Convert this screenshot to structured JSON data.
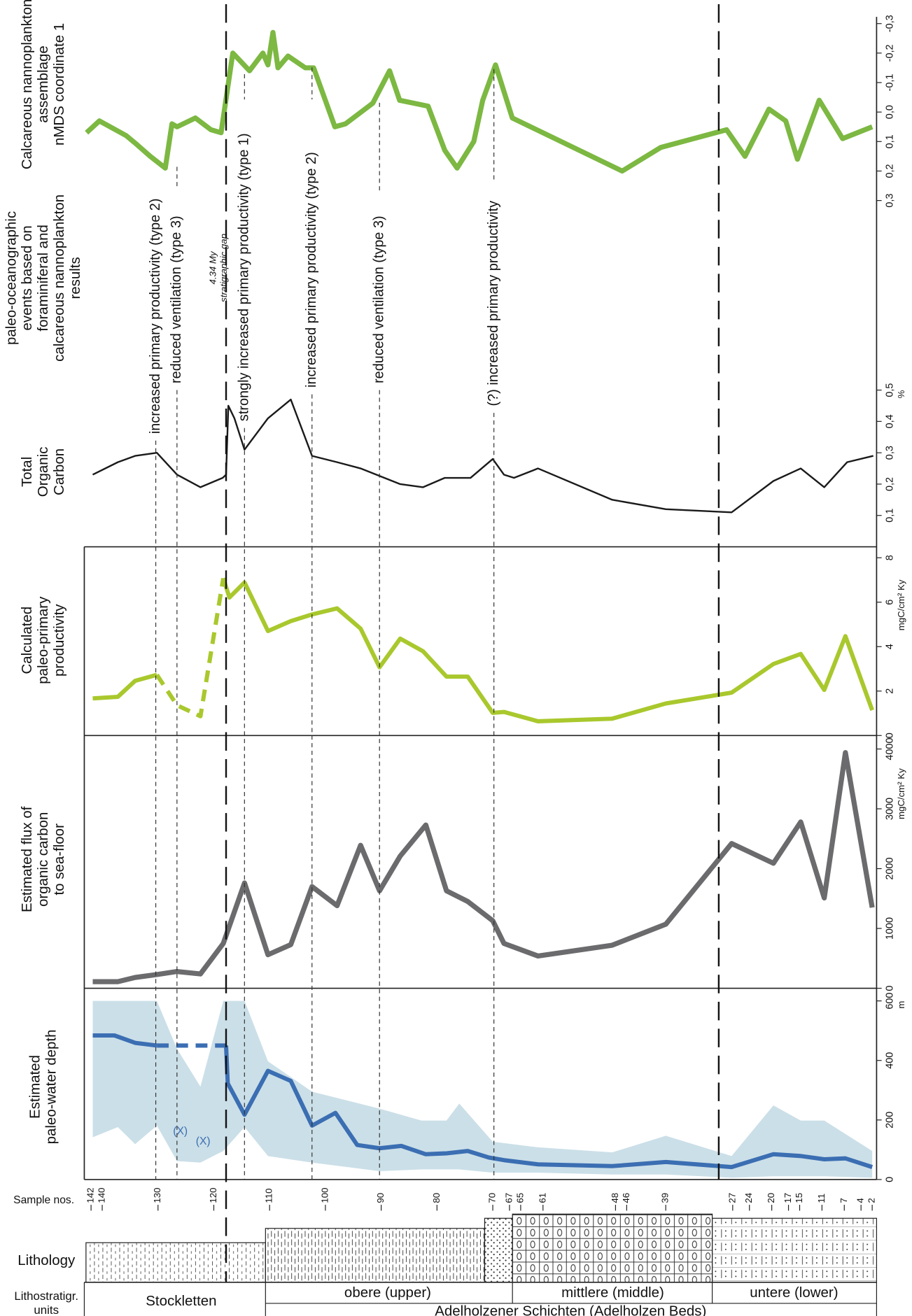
{
  "chart_data": [
    {
      "type": "line",
      "title": [
        "Calcareous nannoplankton",
        "assemblage",
        "nMDS coordinate 1"
      ],
      "x": [
        142.8,
        140.5,
        135.7,
        133.8,
        131.4,
        128.7,
        127.5,
        126.6,
        123.3,
        120.5,
        118.7,
        116.6,
        113.6,
        111.2,
        110.3,
        109.4,
        108.5,
        106.7,
        103.6,
        102.1,
        98.3,
        96.4,
        91.5,
        88.5,
        86.7,
        81.6,
        78.6,
        76.4,
        73.4,
        71.8,
        69.5,
        66.5,
        46.8,
        39.9,
        28.1,
        24.8,
        20.5,
        17.5,
        15.4,
        11.5,
        7.3,
        2.0
      ],
      "values": [
        0.07,
        0.03,
        0.08,
        0.11,
        0.15,
        0.19,
        0.04,
        0.05,
        0.02,
        0.06,
        0.07,
        -0.2,
        -0.14,
        -0.2,
        -0.16,
        -0.27,
        -0.15,
        -0.19,
        -0.15,
        -0.15,
        0.05,
        0.04,
        -0.03,
        -0.14,
        -0.04,
        -0.02,
        0.13,
        0.19,
        0.1,
        -0.04,
        -0.16,
        0.02,
        0.2,
        0.12,
        0.06,
        0.15,
        -0.01,
        0.03,
        0.16,
        -0.04,
        0.09,
        0.05
      ],
      "color": "#7cb842",
      "ylim": [
        0.3,
        -0.3
      ],
      "yticks": [
        {
          "value": -0.3,
          "label": "-0,3"
        },
        {
          "value": -0.2,
          "label": "-0,2"
        },
        {
          "value": -0.1,
          "label": "-0,1"
        },
        {
          "value": 0,
          "label": "0,0"
        },
        {
          "value": 0.1,
          "label": "0,1"
        },
        {
          "value": 0.2,
          "label": "0,2"
        },
        {
          "value": 0.3,
          "label": "0,3"
        }
      ]
    },
    {
      "type": "line",
      "title": [
        "Total",
        "Organic",
        "Carbon"
      ],
      "unit": "%",
      "x": [
        141.7,
        137.2,
        134.1,
        130.2,
        126.6,
        122.4,
        118.4,
        117.8,
        117.4,
        116.3,
        114.5,
        110.3,
        106.2,
        102.4,
        97.9,
        93.7,
        86.6,
        82.5,
        78.6,
        74.0,
        70.0,
        68.0,
        66.2,
        61.9,
        48.6,
        39.0,
        27.2,
        19.7,
        14.8,
        10.6,
        6.5,
        1.8
      ],
      "values": [
        0.23,
        0.27,
        0.29,
        0.3,
        0.23,
        0.19,
        0.22,
        0.23,
        0.45,
        0.41,
        0.31,
        0.41,
        0.47,
        0.29,
        0.27,
        0.25,
        0.2,
        0.19,
        0.22,
        0.22,
        0.28,
        0.23,
        0.22,
        0.25,
        0.15,
        0.12,
        0.11,
        0.21,
        0.25,
        0.19,
        0.27,
        0.29
      ],
      "color": "#1a1a1a",
      "ylim": [
        0,
        0.5
      ],
      "yticks": [
        {
          "value": 0.1,
          "label": "0,1"
        },
        {
          "value": 0.2,
          "label": "0,2"
        },
        {
          "value": 0.3,
          "label": "0,3"
        },
        {
          "value": 0.4,
          "label": "0,4"
        },
        {
          "value": 0.5,
          "label": "0,5"
        }
      ]
    },
    {
      "type": "line",
      "title": [
        "Calculated",
        "paleo-primary",
        "productivity"
      ],
      "unit": "mgC/cm² Ky",
      "x": [
        141.7,
        137.2,
        134.1,
        130.2,
        126.6,
        122.4,
        118.3,
        117.2,
        114.5,
        110.3,
        106.2,
        102.4,
        97.9,
        93.7,
        90.3,
        86.6,
        82.5,
        78.3,
        74.5,
        70.0,
        68.0,
        61.9,
        48.6,
        39.0,
        27.2,
        19.7,
        14.8,
        10.6,
        6.8,
        2.0
      ],
      "values": [
        1.67,
        1.74,
        2.46,
        2.73,
        1.36,
        0.87,
        7.08,
        6.21,
        6.89,
        4.7,
        5.15,
        5.45,
        5.72,
        4.81,
        3.07,
        4.36,
        3.79,
        2.65,
        2.65,
        1.02,
        1.06,
        0.64,
        0.76,
        1.44,
        1.93,
        3.22,
        3.67,
        2.05,
        4.47,
        1.14
      ],
      "dashed": [
        3,
        6
      ],
      "color": "#a9c82d",
      "ylim": [
        0,
        8
      ],
      "yticks": [
        0,
        2,
        4,
        6,
        8
      ]
    },
    {
      "type": "line",
      "title": [
        "Estimated flux of",
        "organic carbon",
        "to sea-floor"
      ],
      "unit": "mgC/cm² Ky",
      "x": [
        141.7,
        137.2,
        134.1,
        130.2,
        126.6,
        122.4,
        118.3,
        114.5,
        110.3,
        106.2,
        102.4,
        97.9,
        93.7,
        90.3,
        86.6,
        82.0,
        78.3,
        74.5,
        70.0,
        68.0,
        61.9,
        48.6,
        39.0,
        27.2,
        19.7,
        14.8,
        10.6,
        6.8,
        2.0
      ],
      "values": [
        110,
        110,
        180,
        230,
        280,
        240,
        750,
        1760,
        560,
        730,
        1700,
        1380,
        2390,
        1630,
        2210,
        2730,
        1630,
        1450,
        1130,
        750,
        540,
        720,
        1070,
        2420,
        2090,
        2780,
        1510,
        3940,
        1350
      ],
      "color": "#6b6b6e",
      "ylim": [
        0,
        4000
      ],
      "yticks": [
        0,
        1000,
        2000,
        3000,
        4000
      ]
    },
    {
      "type": "line",
      "title": [
        "Estimated",
        "paleo-water depth"
      ],
      "unit": "m",
      "x": [
        141.7,
        137.8,
        134.1,
        130.2,
        117.8,
        117.5,
        114.5,
        110.3,
        106.2,
        102.4,
        98.2,
        94.3,
        90.3,
        86.4,
        82.0,
        78.3,
        74.5,
        70.7,
        68.0,
        61.9,
        48.6,
        39.0,
        27.2,
        19.7,
        14.8,
        10.6,
        6.8,
        2.0
      ],
      "values": [
        484,
        484,
        459,
        450,
        450,
        323,
        218,
        365,
        331,
        181,
        224,
        116,
        105,
        113,
        85,
        88,
        96,
        74,
        65,
        51,
        45,
        59,
        42,
        85,
        79,
        68,
        71,
        42
      ],
      "dashed": [
        3,
        4
      ],
      "color": "#3b6eb2",
      "ylim": [
        0,
        600
      ],
      "yticks": [
        0,
        200,
        400,
        600
      ],
      "band": {
        "color": "#cbdfe8",
        "x": [
          141.7,
          137.2,
          134.1,
          130.2,
          126.6,
          122.4,
          118.3,
          114.5,
          110.3,
          102.4,
          90.3,
          82.8,
          78.3,
          76.0,
          70.0,
          61.9,
          48.6,
          39.0,
          27.2,
          19.7,
          14.8,
          10.6,
          2.0
        ],
        "max": [
          600,
          600,
          600,
          600,
          439,
          312,
          600,
          600,
          397,
          295,
          238,
          198,
          198,
          255,
          127,
          108,
          91,
          147,
          79,
          249,
          198,
          198,
          96
        ],
        "min": [
          142,
          176,
          119,
          181,
          62,
          57,
          96,
          176,
          79,
          57,
          28,
          34,
          34,
          34,
          23,
          23,
          17,
          17,
          6,
          11,
          11,
          11,
          6
        ]
      },
      "annotations": [
        "(X)",
        "(X)"
      ]
    }
  ],
  "events": {
    "title": [
      "paleo-oceanographic",
      "events based on",
      "foraminiferal and",
      "calcareous nannoplankton",
      "results"
    ],
    "items": [
      {
        "label": "increased primary productivity (type 2)",
        "x": 130.4
      },
      {
        "label": "reduced ventilation (type 3)",
        "x": 126.6
      },
      {
        "label": "strongly increased primary productivity (type 1)",
        "x": 114.5
      },
      {
        "label": "increased primary productivity (type 2)",
        "x": 102.4
      },
      {
        "label": "reduced ventilation (type 3)",
        "x": 90.3
      },
      {
        "label": "(?) increased primary productivity",
        "x": 69.8
      }
    ],
    "gap": {
      "label": [
        "4.34 My",
        "stratigraphic gap"
      ]
    },
    "boundaries": [
      117.8,
      29.5
    ]
  },
  "sample_axis": {
    "label": "Sample nos.",
    "xlim": [
      143,
      1
    ],
    "xticks": [
      142,
      140,
      130,
      120,
      110,
      100,
      90,
      80,
      70,
      67,
      65,
      61,
      48,
      46,
      39,
      27,
      24,
      20,
      17,
      15,
      11,
      7,
      4,
      2
    ]
  },
  "lithology": {
    "label": "Lithology"
  },
  "lithostratigraphy": {
    "label": [
      "Lithostratigr.",
      "units"
    ],
    "units": [
      "Stockletten",
      "obere (upper)",
      "mittlere (middle)",
      "untere (lower)"
    ],
    "group": "Adelholzener Schichten (Adelholzen Beds)"
  }
}
